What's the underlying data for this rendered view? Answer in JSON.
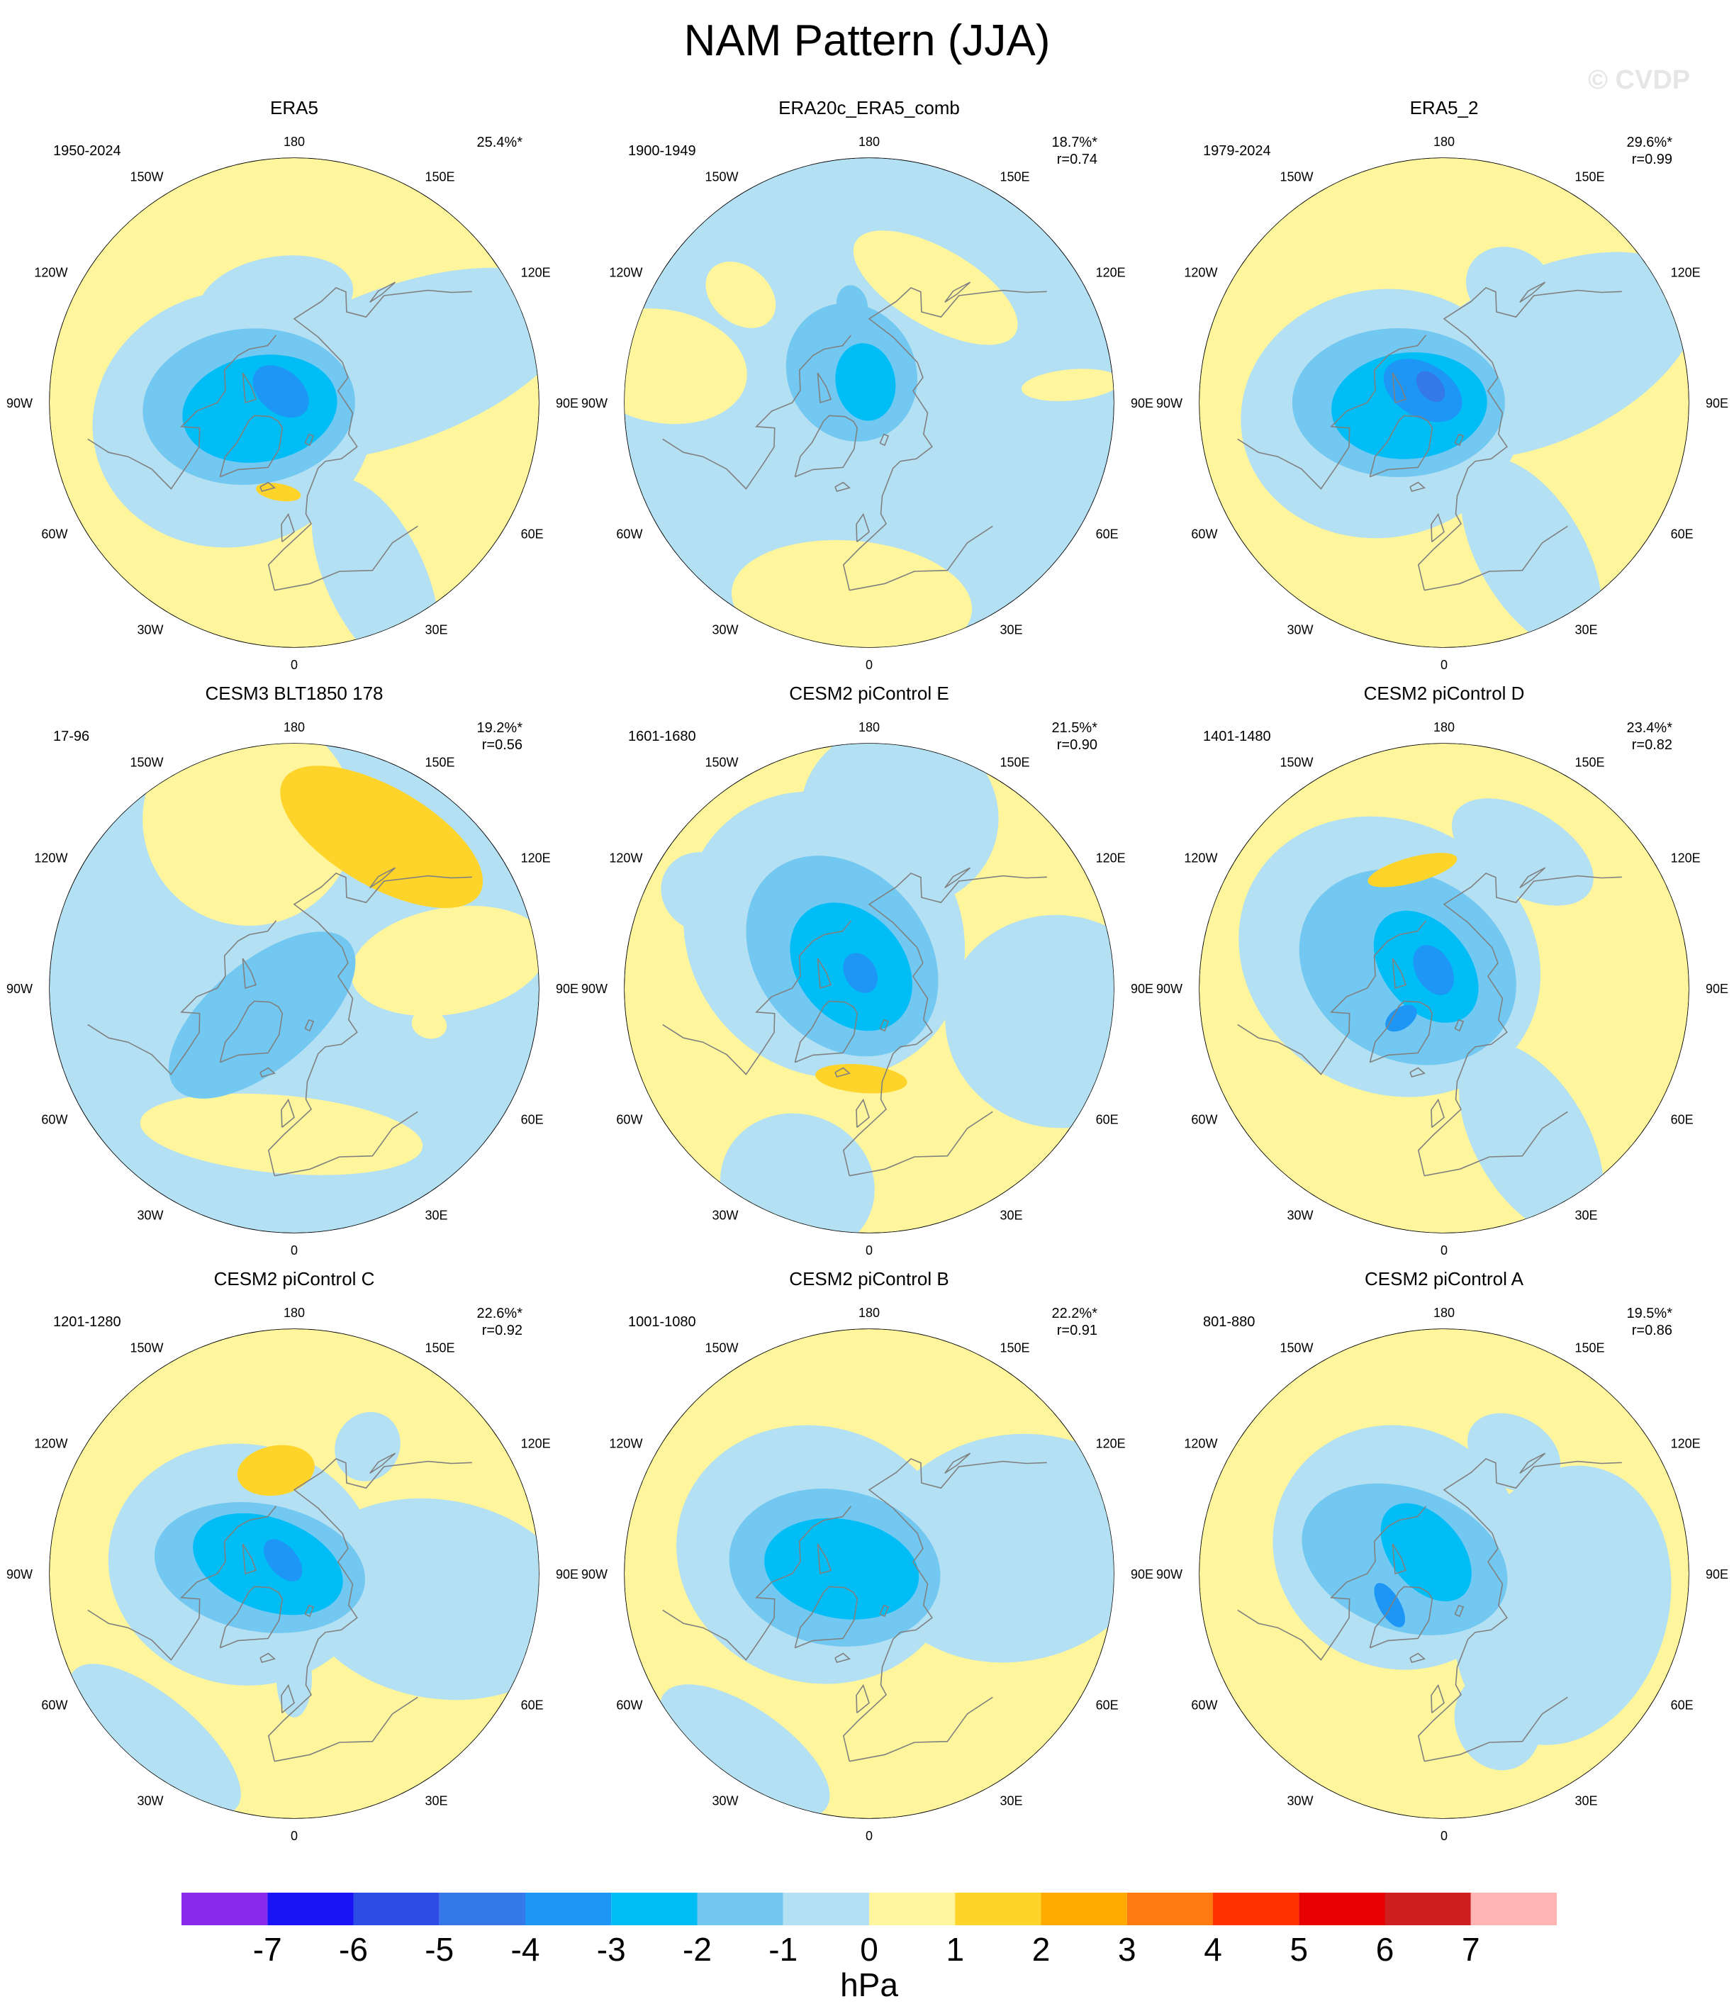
{
  "title": "NAM Pattern (JJA)",
  "watermark": "© CVDP",
  "colors": {
    "pos1": "#FEF59C",
    "pos2": "#FED42B",
    "neg1": "#B4E0F3",
    "neg2": "#72C8F1",
    "neg3": "#00BDF6",
    "neg4": "#1E96F5",
    "neg5": "#3479E7",
    "coast": "#808080"
  },
  "lon_labels": [
    "180",
    "150E",
    "120E",
    "90E",
    "60E",
    "30E",
    "0",
    "30W",
    "60W",
    "90W",
    "120W",
    "150W"
  ],
  "chart_data": [
    {
      "type": "heatmap",
      "title": "ERA5",
      "years": "1950-2024",
      "pct": "25.4%*",
      "r": "",
      "base": "pos1",
      "blobs": [
        {
          "c": "neg1",
          "lat": 60,
          "lon": -170,
          "ry": 60,
          "rx": 110
        },
        {
          "c": "neg1",
          "lat": 58,
          "lon": 110,
          "ry": 260,
          "rx": 110
        },
        {
          "c": "neg1",
          "lat": 35,
          "lon": 25,
          "ry": 150,
          "rx": 70
        },
        {
          "c": "neg1",
          "lat": 72,
          "lon": -75,
          "ry": 200,
          "rx": 180
        },
        {
          "c": "neg2",
          "lat": 77,
          "lon": -85,
          "ry": 150,
          "rx": 110
        },
        {
          "c": "neg3",
          "lat": 80,
          "lon": -80,
          "ry": 110,
          "rx": 75
        },
        {
          "c": "neg4",
          "lat": 85,
          "lon": -130,
          "ry": 45,
          "rx": 30
        },
        {
          "c": "pos2",
          "lat": 64,
          "lon": -10,
          "ry": 12,
          "rx": 32
        }
      ]
    },
    {
      "type": "heatmap",
      "title": "ERA20c_ERA5_comb",
      "years": "1900-1949",
      "pct": "18.7%*",
      "r": "r=0.74",
      "base": "neg1",
      "blobs": [
        {
          "c": "pos1",
          "lat": 52,
          "lon": 150,
          "ry": 55,
          "rx": 130
        },
        {
          "c": "pos1",
          "lat": 30,
          "lon": -100,
          "ry": 120,
          "rx": 80
        },
        {
          "c": "pos1",
          "lat": 33,
          "lon": -5,
          "ry": 85,
          "rx": 170
        },
        {
          "c": "pos1",
          "lat": 32,
          "lon": 95,
          "ry": 70,
          "rx": 22
        },
        {
          "c": "pos1",
          "lat": 42,
          "lon": -130,
          "ry": 55,
          "rx": 40
        },
        {
          "c": "neg2",
          "lat": 80,
          "lon": -150,
          "ry": 100,
          "rx": 90
        },
        {
          "c": "neg2",
          "lat": 62,
          "lon": -170,
          "ry": 30,
          "rx": 22
        },
        {
          "c": "neg3",
          "lat": 84,
          "lon": -170,
          "ry": 55,
          "rx": 42
        }
      ]
    },
    {
      "type": "heatmap",
      "title": "ERA5_2",
      "years": "1979-2024",
      "pct": "29.6%*",
      "r": "r=0.99",
      "base": "pos1",
      "blobs": [
        {
          "c": "neg1",
          "lat": 52,
          "lon": 150,
          "ry": 55,
          "rx": 65
        },
        {
          "c": "neg1",
          "lat": 58,
          "lon": 115,
          "ry": 230,
          "rx": 120
        },
        {
          "c": "neg1",
          "lat": 40,
          "lon": 30,
          "ry": 150,
          "rx": 75
        },
        {
          "c": "neg1",
          "lat": 72,
          "lon": -80,
          "ry": 200,
          "rx": 175
        },
        {
          "c": "neg2",
          "lat": 77,
          "lon": -90,
          "ry": 150,
          "rx": 105
        },
        {
          "c": "neg3",
          "lat": 80,
          "lon": -85,
          "ry": 110,
          "rx": 75
        },
        {
          "c": "neg4",
          "lat": 83,
          "lon": -120,
          "ry": 60,
          "rx": 38
        },
        {
          "c": "neg5",
          "lat": 84,
          "lon": -140,
          "ry": 25,
          "rx": 16
        }
      ]
    },
    {
      "type": "heatmap",
      "title": "CESM3 BLT1850 178",
      "years": "17-96",
      "pct": "19.2%*",
      "r": "r=0.56",
      "base": "neg1",
      "blobs": [
        {
          "c": "pos1",
          "lat": 40,
          "lon": -165,
          "ry": 150,
          "rx": 150
        },
        {
          "c": "pos1",
          "lat": 48,
          "lon": -5,
          "ry": 55,
          "rx": 200
        },
        {
          "c": "pos1",
          "lat": 45,
          "lon": 100,
          "ry": 140,
          "rx": 75
        },
        {
          "c": "pos1",
          "lat": 50,
          "lon": 75,
          "ry": 25,
          "rx": 20
        },
        {
          "c": "pos2",
          "lat": 40,
          "lon": 150,
          "ry": 70,
          "rx": 160
        },
        {
          "c": "neg2",
          "lat": 78,
          "lon": -50,
          "ry": 160,
          "rx": 75
        },
        {
          "c": "neg1",
          "lat": 60,
          "lon": -100,
          "ry": 25,
          "rx": 18
        }
      ]
    },
    {
      "type": "heatmap",
      "title": "CESM2 piControl E",
      "years": "1601-1680",
      "pct": "21.5%*",
      "r": "r=0.90",
      "base": "pos1",
      "blobs": [
        {
          "c": "neg1",
          "lat": 40,
          "lon": 170,
          "ry": 130,
          "rx": 140
        },
        {
          "c": "neg1",
          "lat": 35,
          "lon": 80,
          "ry": 160,
          "rx": 150
        },
        {
          "c": "neg1",
          "lat": 30,
          "lon": -20,
          "ry": 100,
          "rx": 110
        },
        {
          "c": "neg1",
          "lat": 70,
          "lon": -140,
          "ry": 210,
          "rx": 190
        },
        {
          "c": "neg1",
          "lat": 35,
          "lon": -120,
          "ry": 60,
          "rx": 55
        },
        {
          "c": "neg2",
          "lat": 78,
          "lon": -140,
          "ry": 155,
          "rx": 120
        },
        {
          "c": "neg3",
          "lat": 82,
          "lon": -140,
          "ry": 100,
          "rx": 75
        },
        {
          "c": "neg4",
          "lat": 85,
          "lon": -150,
          "ry": 30,
          "rx": 22
        },
        {
          "c": "pos2",
          "lat": 64,
          "lon": -5,
          "ry": 20,
          "rx": 65
        }
      ]
    },
    {
      "type": "heatmap",
      "title": "CESM2 piControl D",
      "years": "1401-1480",
      "pct": "23.4%*",
      "r": "r=0.82",
      "base": "pos1",
      "blobs": [
        {
          "c": "neg1",
          "lat": 45,
          "lon": 150,
          "ry": 60,
          "rx": 110
        },
        {
          "c": "neg1",
          "lat": 40,
          "lon": 30,
          "ry": 150,
          "rx": 80
        },
        {
          "c": "neg1",
          "lat": 72,
          "lon": -120,
          "ry": 220,
          "rx": 190
        },
        {
          "c": "neg2",
          "lat": 78,
          "lon": -120,
          "ry": 160,
          "rx": 130
        },
        {
          "c": "neg3",
          "lat": 82,
          "lon": -140,
          "ry": 90,
          "rx": 60
        },
        {
          "c": "neg4",
          "lat": 84,
          "lon": -150,
          "ry": 38,
          "rx": 25
        },
        {
          "c": "neg4",
          "lat": 75,
          "lon": -55,
          "ry": 25,
          "rx": 15
        },
        {
          "c": "pos2",
          "lat": 55,
          "lon": -165,
          "ry": 18,
          "rx": 65
        }
      ]
    },
    {
      "type": "heatmap",
      "title": "CESM2 piControl C",
      "years": "1201-1280",
      "pct": "22.6%*",
      "r": "r=0.92",
      "base": "pos1",
      "blobs": [
        {
          "c": "neg1",
          "lat": 48,
          "lon": 150,
          "ry": 50,
          "rx": 45
        },
        {
          "c": "neg1",
          "lat": 48,
          "lon": 80,
          "ry": 200,
          "rx": 140
        },
        {
          "c": "neg1",
          "lat": 60,
          "lon": 0,
          "ry": 55,
          "rx": 25
        },
        {
          "c": "neg1",
          "lat": 28,
          "lon": -40,
          "ry": 60,
          "rx": 150
        },
        {
          "c": "neg1",
          "lat": 75,
          "lon": -100,
          "ry": 190,
          "rx": 170
        },
        {
          "c": "neg2",
          "lat": 80,
          "lon": -100,
          "ry": 150,
          "rx": 90
        },
        {
          "c": "neg3",
          "lat": 82,
          "lon": -110,
          "ry": 110,
          "rx": 65
        },
        {
          "c": "neg4",
          "lat": 85,
          "lon": -140,
          "ry": 35,
          "rx": 20
        },
        {
          "c": "pos2",
          "lat": 60,
          "lon": -170,
          "ry": 35,
          "rx": 55
        }
      ]
    },
    {
      "type": "heatmap",
      "title": "CESM2 piControl B",
      "years": "1001-1080",
      "pct": "22.2%*",
      "r": "r=0.91",
      "base": "pos1",
      "blobs": [
        {
          "c": "neg1",
          "lat": 48,
          "lon": 100,
          "ry": 200,
          "rx": 160
        },
        {
          "c": "neg1",
          "lat": 28,
          "lon": -35,
          "ry": 60,
          "rx": 140
        },
        {
          "c": "neg1",
          "lat": 74,
          "lon": -110,
          "ry": 200,
          "rx": 180
        },
        {
          "c": "neg2",
          "lat": 80,
          "lon": -100,
          "ry": 150,
          "rx": 110
        },
        {
          "c": "neg3",
          "lat": 82,
          "lon": -100,
          "ry": 110,
          "rx": 70
        }
      ]
    },
    {
      "type": "heatmap",
      "title": "CESM2 piControl A",
      "years": "801-880",
      "pct": "19.5%*",
      "r": "r=0.86",
      "base": "pos1",
      "blobs": [
        {
          "c": "neg1",
          "lat": 50,
          "lon": 150,
          "ry": 50,
          "rx": 70
        },
        {
          "c": "neg1",
          "lat": 55,
          "lon": 75,
          "ry": 150,
          "rx": 200
        },
        {
          "c": "neg1",
          "lat": 45,
          "lon": 20,
          "ry": 70,
          "rx": 60
        },
        {
          "c": "neg1",
          "lat": 75,
          "lon": -120,
          "ry": 180,
          "rx": 170
        },
        {
          "c": "neg2",
          "lat": 78,
          "lon": -110,
          "ry": 150,
          "rx": 100
        },
        {
          "c": "neg3",
          "lat": 82,
          "lon": -140,
          "ry": 80,
          "rx": 50
        },
        {
          "c": "neg4",
          "lat": 72,
          "lon": -60,
          "ry": 15,
          "rx": 35
        }
      ]
    }
  ],
  "colorbar": {
    "colors": [
      "#8A2BEB",
      "#1A13F5",
      "#2D4CE6",
      "#3479E7",
      "#1E96F5",
      "#00BDF6",
      "#72C8F1",
      "#B4E0F3",
      "#FEF59C",
      "#FED42B",
      "#FEAA00",
      "#FF7A0F",
      "#FF3200",
      "#E60000",
      "#CE1E20",
      "#FFB4B4"
    ],
    "ticks": [
      "-7",
      "-6",
      "-5",
      "-4",
      "-3",
      "-2",
      "-1",
      "0",
      "1",
      "2",
      "3",
      "4",
      "5",
      "6",
      "7"
    ],
    "label": "hPa"
  }
}
